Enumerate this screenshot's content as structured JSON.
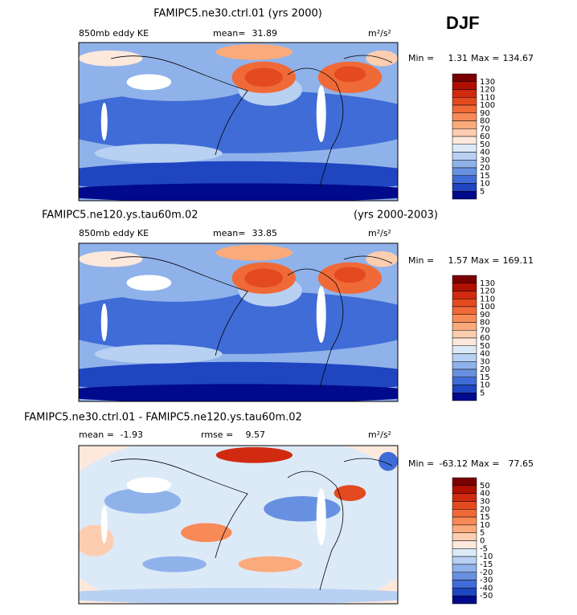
{
  "header": {
    "season": "DJF"
  },
  "panels": [
    {
      "title": "FAMIPC5.ne30.ctrl.01 (yrs 2000)",
      "field": "850mb eddy KE",
      "stats": [
        {
          "label": "mean=",
          "value": 31.89
        }
      ],
      "units": "m²/s²",
      "min_label": "Min =",
      "min": 1.31,
      "max_label": "Max =",
      "max": 134.67,
      "colorbar": {
        "labels": [
          130,
          120,
          110,
          100,
          90,
          80,
          70,
          60,
          50,
          40,
          30,
          20,
          15,
          10,
          5
        ],
        "colors": [
          "#7a0000",
          "#b01000",
          "#d02a10",
          "#e44a20",
          "#f06a38",
          "#f88a58",
          "#fbaa7c",
          "#fdcdb0",
          "#fde8dc",
          "#dceaf8",
          "#b8d0f2",
          "#90b2ea",
          "#6890e0",
          "#3f6cd6",
          "#1f46c0",
          "#000a8a"
        ]
      }
    },
    {
      "title": "FAMIPC5.ne120.ys.tau60m.02",
      "title_right": "(yrs 2000-2003)",
      "field": "850mb eddy KE",
      "stats": [
        {
          "label": "mean=",
          "value": 33.85
        }
      ],
      "units": "m²/s²",
      "min_label": "Min =",
      "min": 1.57,
      "max_label": "Max =",
      "max": 169.11,
      "colorbar": {
        "labels": [
          130,
          120,
          110,
          100,
          90,
          80,
          70,
          60,
          50,
          40,
          30,
          20,
          15,
          10,
          5
        ],
        "colors": [
          "#7a0000",
          "#b01000",
          "#d02a10",
          "#e44a20",
          "#f06a38",
          "#f88a58",
          "#fbaa7c",
          "#fdcdb0",
          "#fde8dc",
          "#dceaf8",
          "#b8d0f2",
          "#90b2ea",
          "#6890e0",
          "#3f6cd6",
          "#1f46c0",
          "#000a8a"
        ]
      }
    },
    {
      "title": "FAMIPC5.ne30.ctrl.01 - FAMIPC5.ne120.ys.tau60m.02",
      "stats": [
        {
          "label": "mean =",
          "value": -1.93
        },
        {
          "label": "rmse =",
          "value": 9.57
        }
      ],
      "units": "m²/s²",
      "min_label": "Min =",
      "min": -63.12,
      "max_label": "Max =",
      "max": 77.65,
      "colorbar": {
        "labels": [
          50,
          40,
          30,
          20,
          15,
          10,
          5,
          0,
          -5,
          -10,
          -15,
          -20,
          -30,
          -40,
          -50
        ],
        "colors": [
          "#7a0000",
          "#b01000",
          "#d02a10",
          "#e44a20",
          "#f06a38",
          "#f88a58",
          "#fbaa7c",
          "#fdcdb0",
          "#fde8dc",
          "#dceaf8",
          "#b8d0f2",
          "#90b2ea",
          "#6890e0",
          "#3f6cd6",
          "#1f46c0",
          "#000a8a"
        ]
      }
    }
  ]
}
